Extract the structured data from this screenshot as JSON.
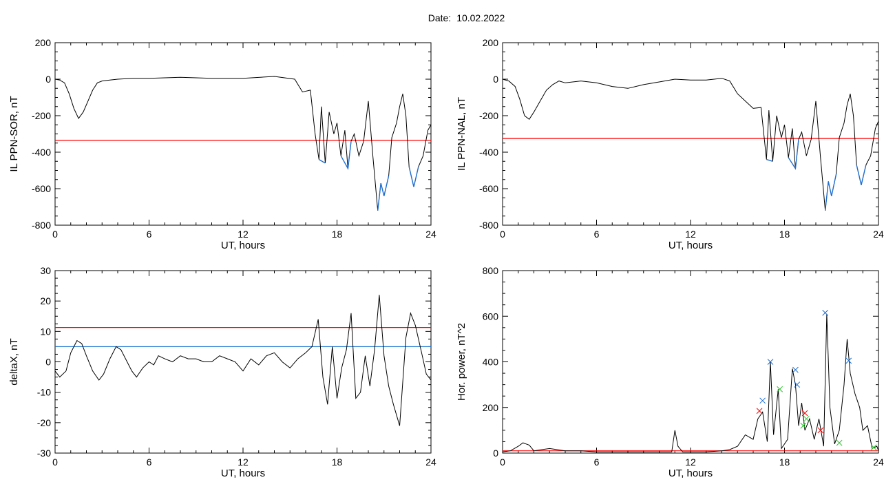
{
  "header": {
    "date_label": "Date:",
    "date_value": "10.02.2022"
  },
  "colors": {
    "trace": "#000000",
    "threshold": "#ff0000",
    "threshold2": "#1f78d1",
    "highlight": "#1f6fd0",
    "marker_green": "#2fbf2f"
  },
  "chart_data": [
    {
      "id": "il-sor",
      "type": "line",
      "xlabel": "UT, hours",
      "ylabel": "IL PPN-SOR, nT",
      "xlim": [
        0,
        24
      ],
      "ylim": [
        -800,
        200
      ],
      "xticks": [
        0,
        6,
        12,
        18,
        24
      ],
      "yticks": [
        -800,
        -600,
        -400,
        -200,
        0,
        200
      ],
      "threshold": -335,
      "series": [
        {
          "x": [
            0,
            0.3,
            0.6,
            0.9,
            1.2,
            1.5,
            1.8,
            2.1,
            2.4,
            2.7,
            3,
            3.5,
            4,
            5,
            6,
            8,
            10,
            12,
            14,
            15.3,
            15.8,
            16.3,
            16.6,
            16.85,
            17.0,
            17.25,
            17.5,
            17.8,
            18.0,
            18.25,
            18.5,
            18.7,
            18.9,
            19.1,
            19.4,
            19.7,
            20.0,
            20.3,
            20.6,
            20.8,
            21.0,
            21.3,
            21.5,
            21.8,
            22.0,
            22.2,
            22.4,
            22.6,
            22.9,
            23.2,
            23.5,
            23.8,
            24
          ],
          "y": [
            0,
            -5,
            -20,
            -80,
            -160,
            -215,
            -180,
            -120,
            -60,
            -20,
            -10,
            -5,
            0,
            5,
            5,
            10,
            5,
            5,
            15,
            0,
            -70,
            -60,
            -300,
            -440,
            -150,
            -460,
            -180,
            -300,
            -240,
            -420,
            -280,
            -490,
            -340,
            -300,
            -420,
            -340,
            -120,
            -430,
            -720,
            -570,
            -640,
            -530,
            -320,
            -240,
            -150,
            -80,
            -200,
            -480,
            -590,
            -480,
            -420,
            -280,
            -250
          ]
        }
      ],
      "highlight_spans": [
        [
          16.6,
          17.3
        ],
        [
          18.2,
          19.2
        ],
        [
          20.4,
          21.3
        ],
        [
          22.4,
          23.4
        ]
      ]
    },
    {
      "id": "il-nal",
      "type": "line",
      "xlabel": "UT, hours",
      "ylabel": "IL PPN-NAL, nT",
      "xlim": [
        0,
        24
      ],
      "ylim": [
        -800,
        200
      ],
      "xticks": [
        0,
        6,
        12,
        18,
        24
      ],
      "yticks": [
        -800,
        -600,
        -400,
        -200,
        0,
        200
      ],
      "threshold": -325,
      "series": [
        {
          "x": [
            0,
            0.4,
            0.8,
            1.1,
            1.4,
            1.7,
            2.0,
            2.4,
            2.8,
            3.2,
            3.6,
            4,
            5,
            6,
            7,
            8,
            9,
            10,
            11,
            12,
            13,
            14,
            14.5,
            15,
            15.5,
            16,
            16.5,
            16.85,
            17.0,
            17.25,
            17.5,
            17.8,
            18.0,
            18.25,
            18.5,
            18.7,
            18.9,
            19.1,
            19.4,
            19.7,
            20.0,
            20.3,
            20.6,
            20.8,
            21.0,
            21.3,
            21.5,
            21.8,
            22.0,
            22.2,
            22.4,
            22.6,
            22.9,
            23.2,
            23.5,
            23.8,
            24
          ],
          "y": [
            0,
            -10,
            -40,
            -110,
            -200,
            -220,
            -180,
            -120,
            -60,
            -30,
            -10,
            -20,
            -10,
            -20,
            -40,
            -50,
            -30,
            -15,
            0,
            -5,
            -5,
            5,
            -10,
            -80,
            -120,
            -160,
            -155,
            -440,
            -170,
            -450,
            -200,
            -320,
            -250,
            -430,
            -270,
            -490,
            -330,
            -290,
            -420,
            -330,
            -120,
            -430,
            -720,
            -560,
            -640,
            -520,
            -320,
            -240,
            -140,
            -80,
            -200,
            -470,
            -580,
            -470,
            -420,
            -270,
            -230
          ]
        }
      ],
      "highlight_spans": [
        [
          16.6,
          17.3
        ],
        [
          18.2,
          19.2
        ],
        [
          20.4,
          21.3
        ],
        [
          22.4,
          23.4
        ]
      ]
    },
    {
      "id": "deltax",
      "type": "line",
      "xlabel": "UT, hours",
      "ylabel": "deltaX, nT",
      "xlim": [
        0,
        24
      ],
      "ylim": [
        -30,
        30
      ],
      "xticks": [
        0,
        6,
        12,
        18,
        24
      ],
      "yticks": [
        -30,
        -20,
        -10,
        0,
        10,
        20,
        30
      ],
      "threshold": 11.3,
      "threshold2": 5,
      "series": [
        {
          "x": [
            0,
            0.3,
            0.7,
            1.0,
            1.4,
            1.7,
            2.0,
            2.4,
            2.8,
            3.1,
            3.5,
            3.9,
            4.2,
            4.5,
            4.9,
            5.2,
            5.6,
            6.0,
            6.3,
            6.6,
            7.0,
            7.5,
            8.0,
            8.5,
            9.0,
            9.5,
            10.0,
            10.5,
            11.0,
            11.5,
            12.0,
            12.5,
            13.0,
            13.5,
            14.0,
            14.5,
            15.0,
            15.5,
            16.0,
            16.4,
            16.8,
            17.1,
            17.4,
            17.7,
            18.0,
            18.3,
            18.6,
            18.9,
            19.2,
            19.5,
            19.8,
            20.1,
            20.4,
            20.7,
            21.0,
            21.3,
            21.6,
            22.0,
            22.4,
            22.7,
            23.0,
            23.4,
            23.7,
            24
          ],
          "y": [
            -3,
            -5,
            -3,
            3,
            7,
            6,
            2,
            -3,
            -6,
            -4,
            1,
            5,
            4,
            1,
            -3,
            -5,
            -2,
            0,
            -1,
            2,
            1,
            0,
            2,
            1,
            1,
            0,
            0,
            2,
            1,
            0,
            -3,
            1,
            -1,
            2,
            3,
            0,
            -2,
            1,
            3,
            5,
            14,
            -5,
            -14,
            5,
            -12,
            -2,
            4,
            16,
            -12,
            -10,
            2,
            -8,
            4,
            22,
            2,
            -8,
            -14,
            -21,
            8,
            16,
            12,
            3,
            -4,
            -6
          ]
        }
      ]
    },
    {
      "id": "hor-power",
      "type": "line",
      "xlabel": "UT, hours",
      "ylabel": "Hor. power, nT^2",
      "xlim": [
        0,
        24
      ],
      "ylim": [
        0,
        800
      ],
      "xticks": [
        0,
        6,
        12,
        18,
        24
      ],
      "yticks": [
        0,
        200,
        400,
        600,
        800
      ],
      "threshold": 10,
      "series": [
        {
          "x": [
            0,
            0.5,
            1.0,
            1.3,
            1.7,
            2.0,
            2.5,
            3.0,
            4,
            5,
            6,
            7,
            8,
            9,
            10,
            10.8,
            11.0,
            11.2,
            11.5,
            12,
            13,
            14,
            14.5,
            15,
            15.5,
            16.0,
            16.3,
            16.6,
            16.9,
            17.1,
            17.3,
            17.6,
            17.8,
            18.2,
            18.5,
            18.7,
            18.9,
            19.1,
            19.3,
            19.6,
            19.9,
            20.2,
            20.5,
            20.7,
            20.9,
            21.2,
            21.5,
            21.8,
            22.0,
            22.2,
            22.5,
            22.8,
            23.0,
            23.3,
            23.6,
            23.9,
            24
          ],
          "y": [
            5,
            10,
            30,
            45,
            35,
            10,
            15,
            20,
            10,
            10,
            5,
            5,
            5,
            5,
            5,
            5,
            100,
            30,
            5,
            5,
            5,
            10,
            15,
            30,
            80,
            60,
            150,
            180,
            50,
            400,
            80,
            280,
            20,
            60,
            370,
            300,
            120,
            220,
            100,
            150,
            60,
            150,
            30,
            610,
            200,
            40,
            100,
            300,
            500,
            350,
            260,
            200,
            100,
            120,
            20,
            30,
            10
          ]
        }
      ],
      "markers": {
        "blue": [
          [
            16.6,
            230
          ],
          [
            17.1,
            400
          ],
          [
            18.7,
            365
          ],
          [
            18.8,
            300
          ],
          [
            20.6,
            615
          ],
          [
            22.1,
            405
          ]
        ],
        "green": [
          [
            17.7,
            280
          ],
          [
            19.2,
            120
          ],
          [
            19.4,
            150
          ],
          [
            21.5,
            45
          ],
          [
            23.7,
            25
          ]
        ],
        "red": [
          [
            16.4,
            185
          ],
          [
            19.3,
            175
          ],
          [
            20.3,
            100
          ]
        ]
      }
    }
  ]
}
